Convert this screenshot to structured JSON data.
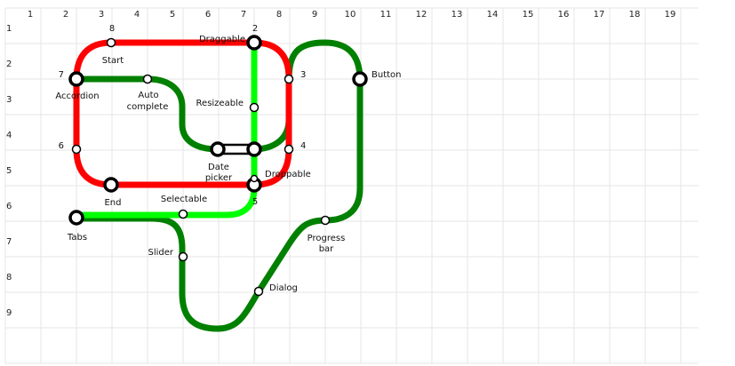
{
  "grid": {
    "columns": [
      "1",
      "2",
      "3",
      "4",
      "5",
      "6",
      "7",
      "8",
      "9",
      "10",
      "11",
      "12",
      "13",
      "14",
      "15",
      "16",
      "17",
      "18",
      "19"
    ],
    "rows": [
      "1",
      "2",
      "3",
      "4",
      "5",
      "6",
      "7",
      "8",
      "9"
    ],
    "line_color": "#e6e6e6"
  },
  "lines": {
    "red": {
      "color": "#ff0000"
    },
    "green": {
      "color": "#008000"
    },
    "lime": {
      "color": "#00ff00"
    },
    "dark_green": {
      "color": "#008000"
    }
  },
  "stations": {
    "start": {
      "label": "Start",
      "number": "8"
    },
    "draggable": {
      "label": "Draggable",
      "number": "2"
    },
    "accordion": {
      "label": "Accordion",
      "number": "7"
    },
    "autocomplete": {
      "label_1": "Auto",
      "label_2": "complete"
    },
    "resizeable": {
      "label": "Resizeable"
    },
    "red_3": {
      "number": "3"
    },
    "red_4": {
      "number": "4"
    },
    "red_6": {
      "number": "6"
    },
    "datepicker": {
      "label_1": "Date",
      "label_2": "picker"
    },
    "droppable": {
      "label": "Droppable",
      "number": "5"
    },
    "end": {
      "label": "End"
    },
    "selectable": {
      "label": "Selectable"
    },
    "tabs": {
      "label": "Tabs"
    },
    "slider": {
      "label": "Slider"
    },
    "dialog": {
      "label": "Dialog"
    },
    "progressbar": {
      "label_1": "Progress",
      "label_2": "bar"
    },
    "button": {
      "label": "Button"
    }
  }
}
